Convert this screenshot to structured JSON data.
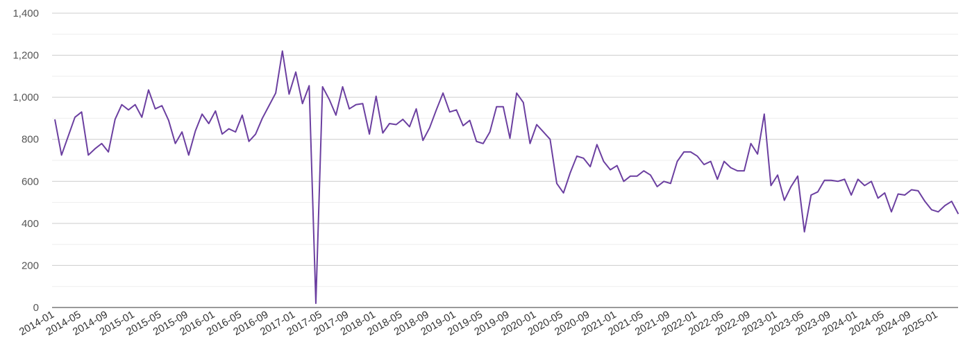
{
  "chart_data": {
    "type": "line",
    "title": "",
    "xlabel": "",
    "ylabel": "",
    "ylim": [
      0,
      1400
    ],
    "y_ticks": [
      0,
      200,
      400,
      600,
      800,
      1000,
      1200,
      1400
    ],
    "y_tick_labels": [
      "0",
      "200",
      "400",
      "600",
      "800",
      "1,000",
      "1,200",
      "1,400"
    ],
    "x_tick_labels": [
      "2014-01",
      "2014-05",
      "2014-09",
      "2015-01",
      "2015-05",
      "2015-09",
      "2016-01",
      "2016-05",
      "2016-09",
      "2017-01",
      "2017-05",
      "2017-09",
      "2018-01",
      "2018-05",
      "2018-09",
      "2019-01",
      "2019-05",
      "2019-09",
      "2020-01",
      "2020-05",
      "2020-09",
      "2021-01",
      "2021-05",
      "2021-09",
      "2022-01",
      "2022-05",
      "2022-09",
      "2023-01",
      "2023-05",
      "2023-09",
      "2024-01",
      "2024-05",
      "2024-09",
      "2025-01"
    ],
    "grid": true,
    "colors": {
      "line": "#6b3fa0",
      "grid_major": "#cccccc",
      "grid_minor": "#eeeeee",
      "axis": "#333333"
    },
    "series": [
      {
        "start": "2014-01",
        "values": [
          895,
          725,
          815,
          905,
          930,
          725,
          755,
          780,
          740,
          895,
          965,
          940,
          965,
          905,
          1035,
          945,
          960,
          890,
          780,
          835,
          725,
          840,
          920,
          875,
          935,
          825,
          850,
          835,
          915,
          790,
          825,
          900,
          960,
          1020,
          1220,
          1015,
          1120,
          970,
          1055,
          20,
          1050,
          990,
          915,
          1050,
          945,
          965,
          970,
          825,
          1005,
          830,
          875,
          870,
          895,
          860,
          945,
          795,
          855,
          940,
          1020,
          930,
          940,
          865,
          890,
          790,
          780,
          835,
          955,
          955,
          805,
          1020,
          975,
          780,
          870,
          835,
          800,
          590,
          545,
          640,
          720,
          710,
          670,
          775,
          695,
          655,
          675,
          600,
          625,
          625,
          650,
          630,
          575,
          600,
          590,
          695,
          740,
          740,
          720,
          680,
          695,
          610,
          695,
          665,
          650,
          650,
          780,
          730,
          920,
          580,
          630,
          510,
          575,
          625,
          360,
          535,
          550,
          605,
          605,
          600,
          610,
          535,
          610,
          580,
          600,
          520,
          545,
          455,
          540,
          535,
          560,
          555,
          505,
          465,
          455,
          485,
          505,
          445
        ]
      }
    ]
  }
}
